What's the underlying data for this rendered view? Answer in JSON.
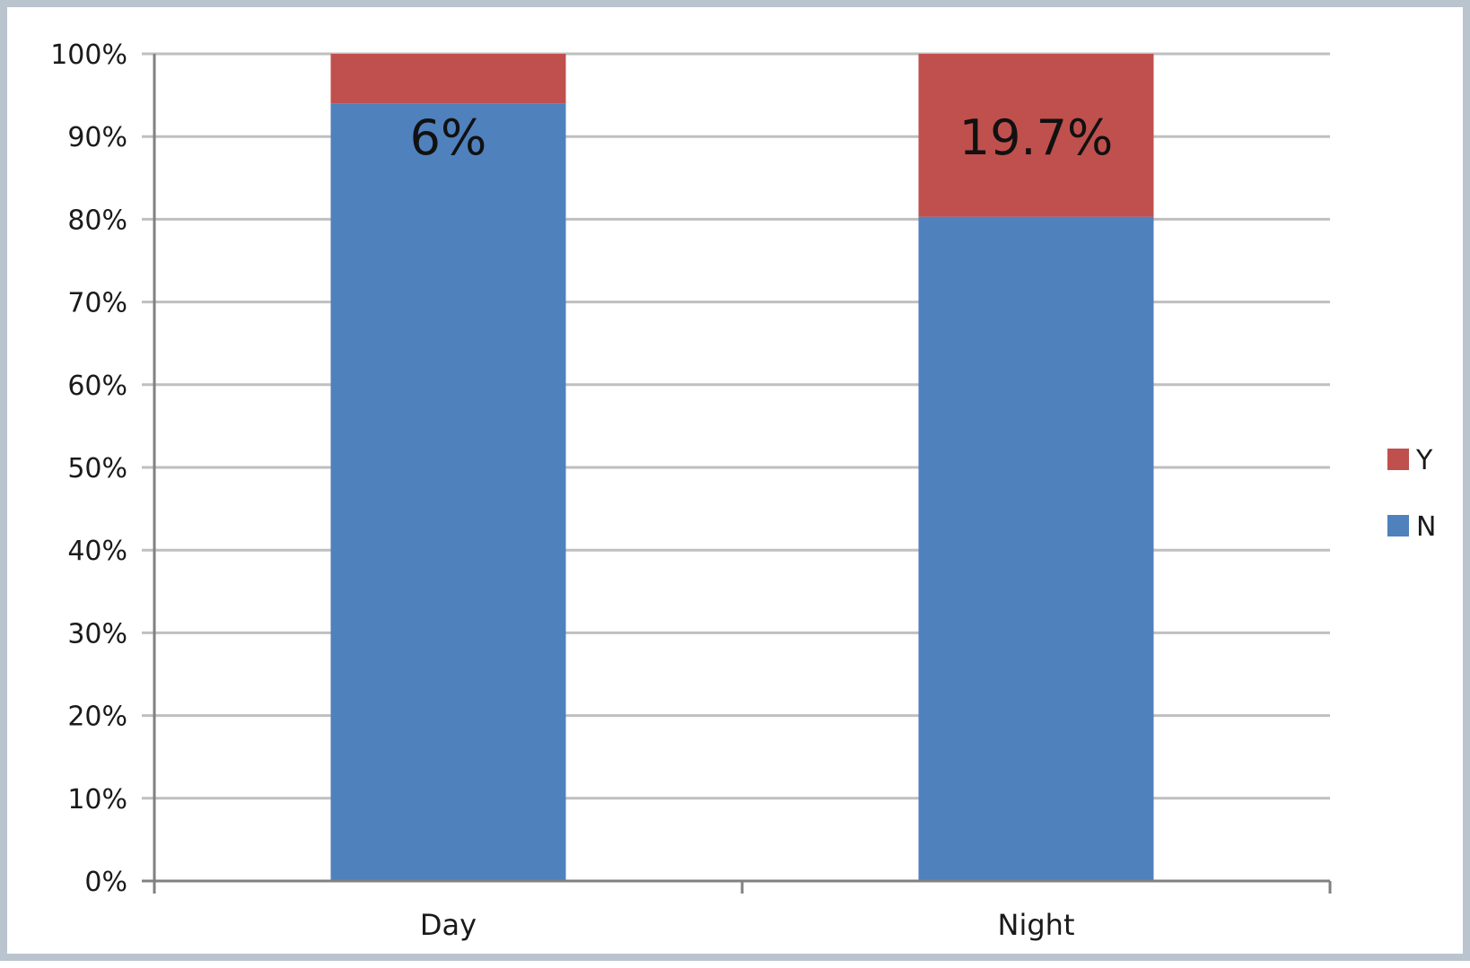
{
  "chart_data": {
    "type": "bar",
    "stacked": true,
    "categories": [
      "Day",
      "Night"
    ],
    "series": [
      {
        "name": "N",
        "values": [
          94,
          80.3
        ],
        "color": "#4f81bd"
      },
      {
        "name": "Y",
        "values": [
          6,
          19.7
        ],
        "color": "#c0504d"
      }
    ],
    "data_labels": [
      "6%",
      "19.7%"
    ],
    "title": "",
    "xlabel": "",
    "ylabel": "",
    "ylim": [
      0,
      100
    ],
    "yticks": [
      "0%",
      "10%",
      "20%",
      "30%",
      "40%",
      "50%",
      "60%",
      "70%",
      "80%",
      "90%",
      "100%"
    ],
    "grid": true,
    "legend": {
      "placement": "right",
      "entries": [
        "Y",
        "N"
      ]
    }
  }
}
